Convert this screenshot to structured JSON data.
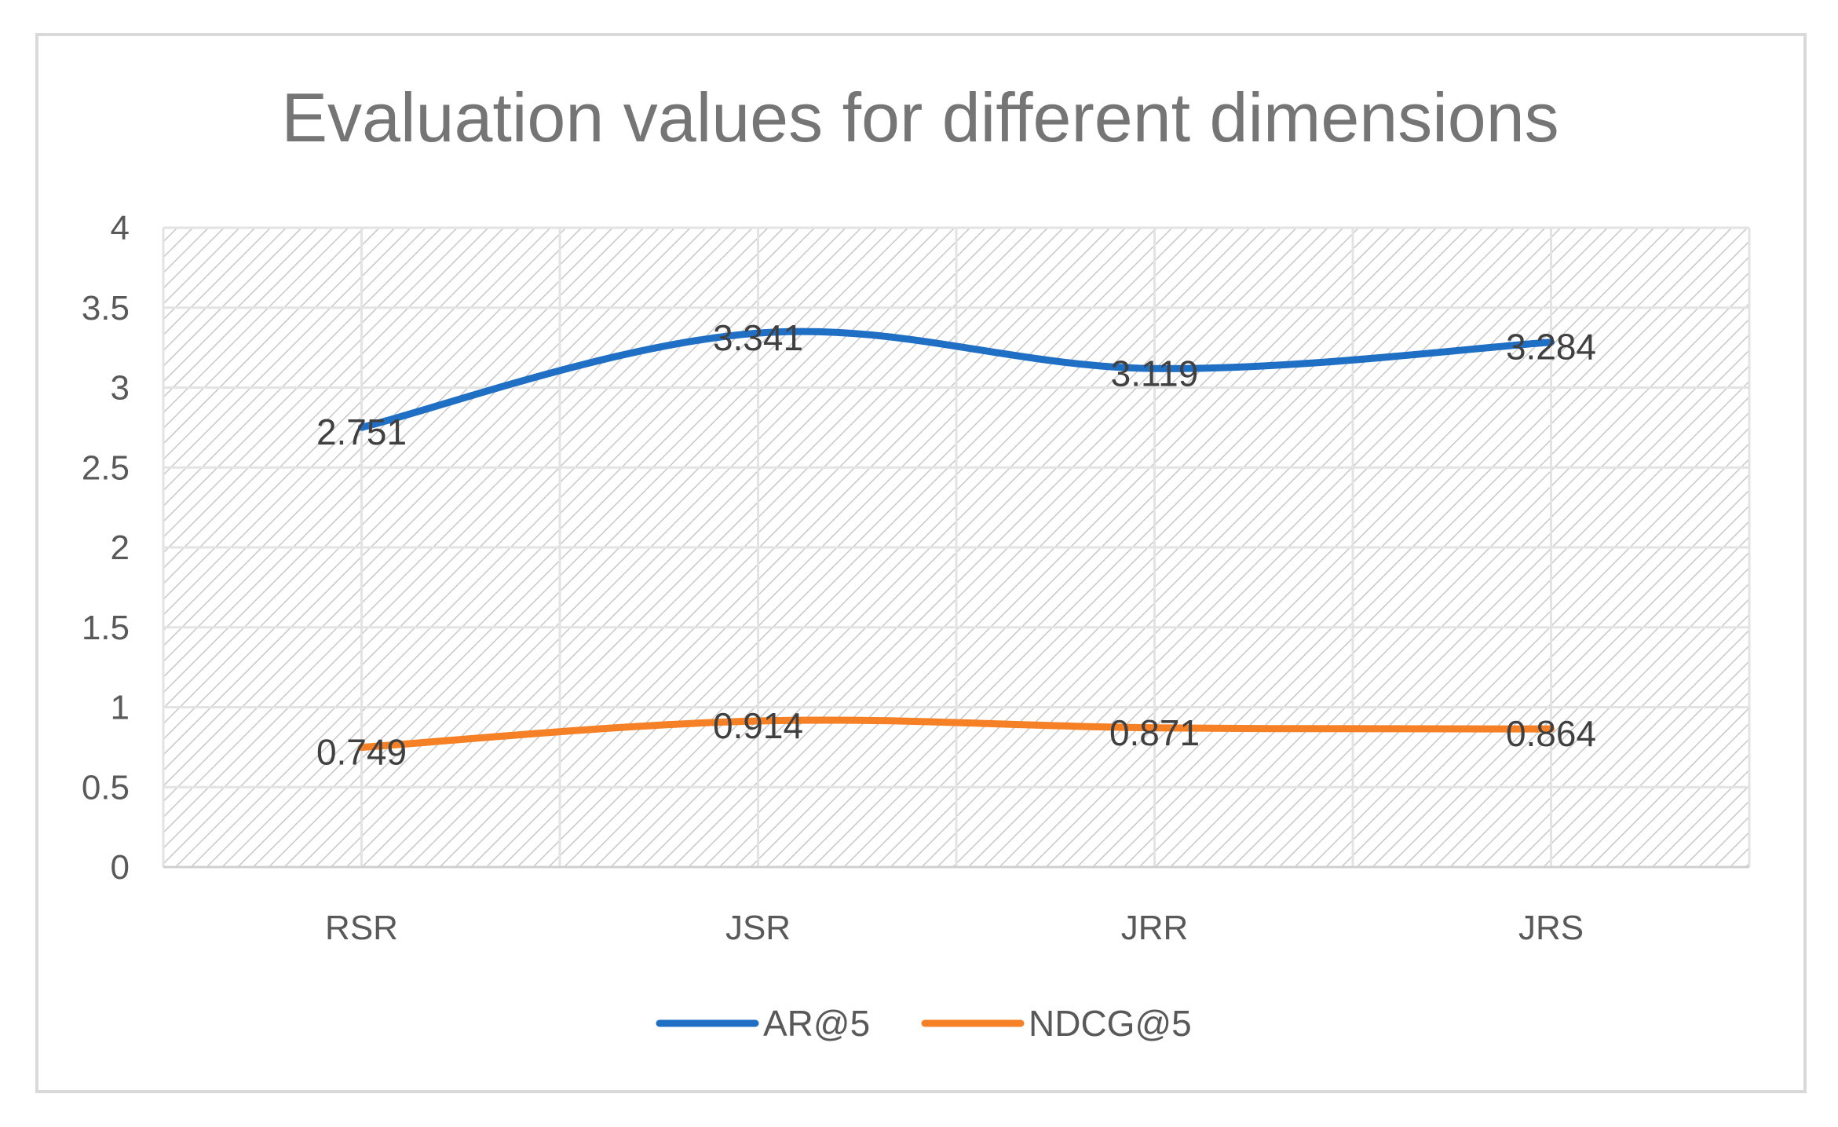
{
  "chart_data": {
    "type": "line",
    "title": "Evaluation values for different dimensions",
    "categories": [
      "RSR",
      "JSR",
      "JRR",
      "JRS"
    ],
    "series": [
      {
        "name": "AR@5",
        "values": [
          2.751,
          3.341,
          3.119,
          3.284
        ],
        "labels": [
          "2.751",
          "3.341",
          "3.119",
          "3.284"
        ],
        "color": "#1f6fc5"
      },
      {
        "name": "NDCG@5",
        "values": [
          0.749,
          0.914,
          0.871,
          0.864
        ],
        "labels": [
          "0.749",
          "0.914",
          "0.871",
          "0.864"
        ],
        "color": "#f58025"
      }
    ],
    "ylim": [
      0,
      4
    ],
    "yticks": [
      "0",
      "0.5",
      "1",
      "1.5",
      "2",
      "2.5",
      "3",
      "3.5",
      "4"
    ],
    "xlabel": "",
    "ylabel": "",
    "grid": true,
    "legend_position": "bottom"
  }
}
